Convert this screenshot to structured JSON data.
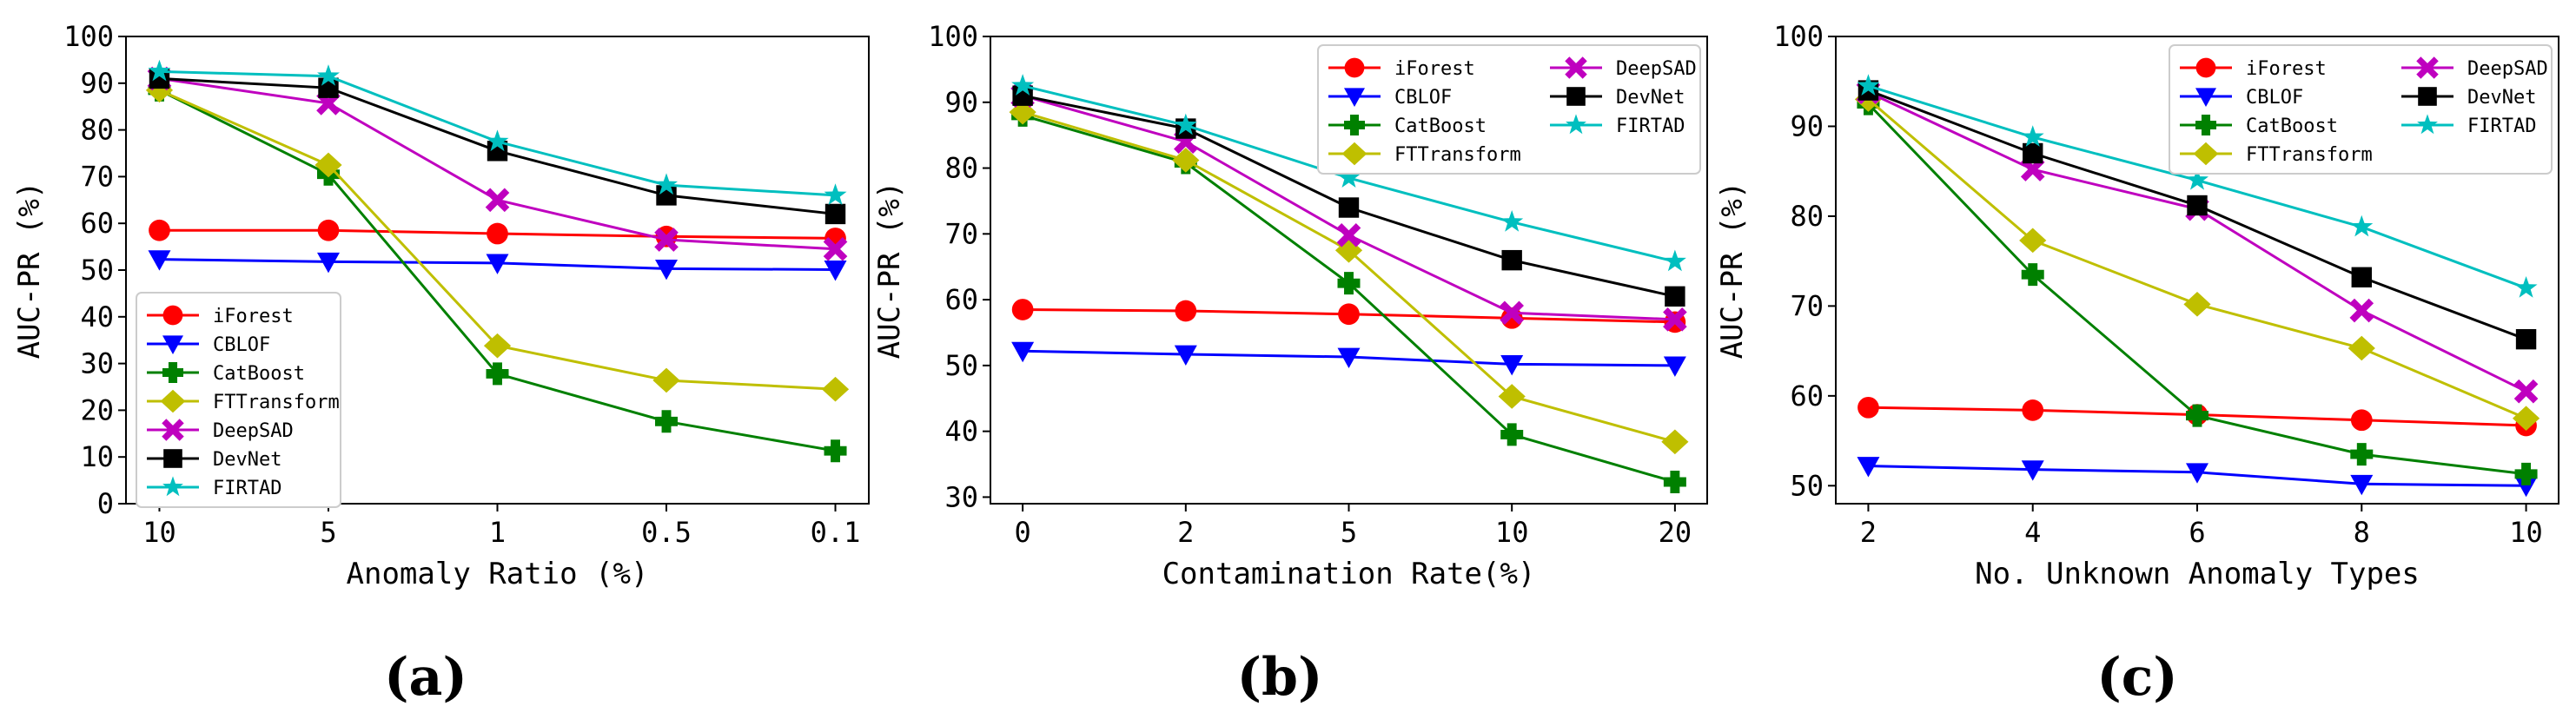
{
  "colors": {
    "iForest": "#ff0000",
    "CBLOF": "#0000ff",
    "CatBoost": "#008000",
    "FTTransform": "#bfbf00",
    "DeepSAD": "#bf00bf",
    "DevNet": "#000000",
    "FIRTAD": "#00bfbf"
  },
  "series_order": [
    "iForest",
    "CBLOF",
    "CatBoost",
    "FTTransform",
    "DeepSAD",
    "DevNet",
    "FIRTAD"
  ],
  "markers": {
    "iForest": "circle",
    "CBLOF": "triangle-down",
    "CatBoost": "plus",
    "FTTransform": "diamond",
    "DeepSAD": "x",
    "DevNet": "square",
    "FIRTAD": "star"
  },
  "chart_data": [
    {
      "type": "line",
      "caption": "(a)",
      "xlabel": "Anomaly Ratio (%)",
      "ylabel": "AUC-PR (%)",
      "x_ticks": [
        "10",
        "5",
        "1",
        "0.5",
        "0.1"
      ],
      "ylim": [
        0,
        100
      ],
      "y_ticks": [
        0,
        10,
        20,
        30,
        40,
        50,
        60,
        70,
        80,
        90,
        100
      ],
      "legend_position": "lower-left",
      "legend_columns": 1,
      "series": [
        {
          "name": "iForest",
          "values": [
            58.5,
            58.5,
            57.8,
            57.2,
            56.8
          ]
        },
        {
          "name": "CBLOF",
          "values": [
            52.3,
            51.8,
            51.5,
            50.3,
            50.1
          ]
        },
        {
          "name": "CatBoost",
          "values": [
            88.5,
            70.5,
            27.8,
            17.6,
            11.3
          ]
        },
        {
          "name": "FTTransform",
          "values": [
            88.5,
            72.5,
            33.8,
            26.4,
            24.5
          ]
        },
        {
          "name": "DeepSAD",
          "values": [
            91.0,
            85.7,
            65.0,
            56.5,
            54.5
          ]
        },
        {
          "name": "DevNet",
          "values": [
            91.0,
            89.0,
            75.5,
            66.0,
            62.0
          ]
        },
        {
          "name": "FIRTAD",
          "values": [
            92.5,
            91.5,
            77.5,
            68.2,
            66.0
          ]
        }
      ]
    },
    {
      "type": "line",
      "caption": "(b)",
      "xlabel": "Contamination Rate(%)",
      "ylabel": "AUC-PR (%)",
      "x_ticks": [
        "0",
        "2",
        "5",
        "10",
        "20"
      ],
      "ylim": [
        29,
        100
      ],
      "y_ticks": [
        30,
        40,
        50,
        60,
        70,
        80,
        90,
        100
      ],
      "legend_position": "top-right",
      "legend_columns": 2,
      "series": [
        {
          "name": "iForest",
          "values": [
            58.5,
            58.3,
            57.8,
            57.2,
            56.6
          ]
        },
        {
          "name": "CBLOF",
          "values": [
            52.2,
            51.7,
            51.3,
            50.2,
            50.0
          ]
        },
        {
          "name": "CatBoost",
          "values": [
            88.0,
            80.8,
            62.5,
            39.5,
            32.3
          ]
        },
        {
          "name": "FTTransform",
          "values": [
            88.5,
            81.2,
            67.5,
            45.3,
            38.4
          ]
        },
        {
          "name": "DeepSAD",
          "values": [
            91.0,
            84.0,
            69.8,
            58.0,
            57.0
          ]
        },
        {
          "name": "DevNet",
          "values": [
            91.0,
            86.0,
            74.0,
            66.0,
            60.5
          ]
        },
        {
          "name": "FIRTAD",
          "values": [
            92.5,
            86.5,
            78.5,
            71.8,
            65.8
          ]
        }
      ]
    },
    {
      "type": "line",
      "caption": "(c)",
      "xlabel": "No. Unknown Anomaly Types",
      "ylabel": "AUC-PR (%)",
      "x_ticks": [
        "2",
        "4",
        "6",
        "8",
        "10"
      ],
      "ylim": [
        48,
        100
      ],
      "y_ticks": [
        50,
        60,
        70,
        80,
        90,
        100
      ],
      "legend_position": "top-right",
      "legend_columns": 2,
      "series": [
        {
          "name": "iForest",
          "values": [
            58.7,
            58.4,
            57.9,
            57.3,
            56.7
          ]
        },
        {
          "name": "CBLOF",
          "values": [
            52.2,
            51.8,
            51.5,
            50.2,
            50.0
          ]
        },
        {
          "name": "CatBoost",
          "values": [
            92.5,
            73.5,
            57.8,
            53.5,
            51.3
          ]
        },
        {
          "name": "FTTransform",
          "values": [
            93.0,
            77.3,
            70.2,
            65.3,
            57.5
          ]
        },
        {
          "name": "DeepSAD",
          "values": [
            93.8,
            85.2,
            80.8,
            69.5,
            60.5
          ]
        },
        {
          "name": "DevNet",
          "values": [
            94.0,
            87.0,
            81.2,
            73.2,
            66.3
          ]
        },
        {
          "name": "FIRTAD",
          "values": [
            94.5,
            88.8,
            84.0,
            78.8,
            72.0
          ]
        }
      ]
    }
  ]
}
